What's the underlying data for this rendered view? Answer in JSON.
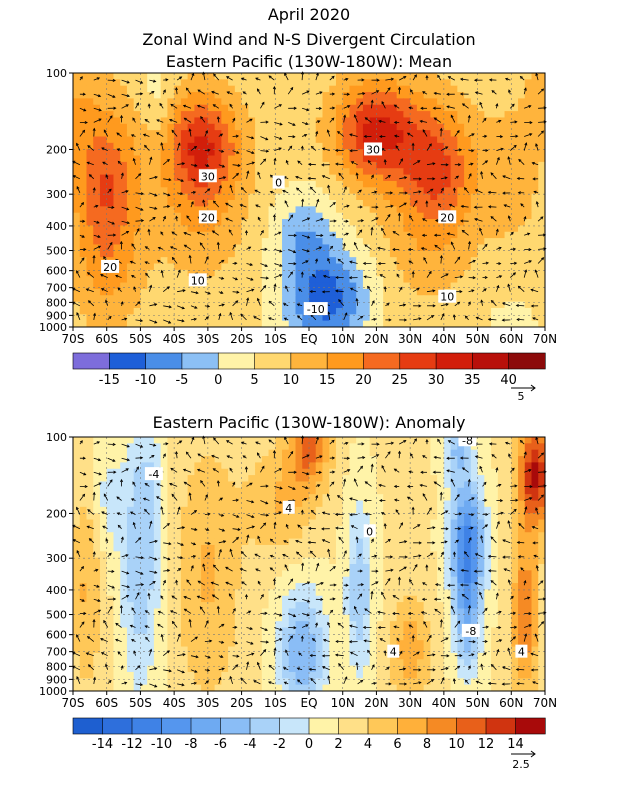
{
  "header": {
    "date": "April 2020",
    "title": "Zonal Wind and N-S Divergent Circulation"
  },
  "chart_data": [
    {
      "type": "heatmap",
      "title": "Eastern Pacific (130W-180W): Mean",
      "x_ticks": [
        "70S",
        "60S",
        "50S",
        "40S",
        "30S",
        "20S",
        "10S",
        "EQ",
        "10N",
        "20N",
        "30N",
        "40N",
        "50N",
        "60N",
        "70N"
      ],
      "y_ticks": [
        "100",
        "200",
        "300",
        "400",
        "500",
        "600",
        "700",
        "800",
        "900",
        "1000"
      ],
      "y_scale": "log",
      "colorbar_labels": [
        "-15",
        "-10",
        "-5",
        "0",
        "5",
        "10",
        "15",
        "20",
        "25",
        "30",
        "35",
        "40"
      ],
      "colorbar_bounds": [
        -20,
        -15,
        -10,
        -5,
        0,
        5,
        10,
        15,
        20,
        25,
        30,
        35,
        40,
        45
      ],
      "colorbar_colors": [
        "#7d6ddb",
        "#1e5fd8",
        "#4a8ee8",
        "#8cc0f5",
        "#fff3a8",
        "#ffd870",
        "#ffb43c",
        "#ff9a1e",
        "#f56a20",
        "#e63c12",
        "#d21e0a",
        "#b8100a",
        "#8c0a0a"
      ],
      "vector_ref": "5",
      "contour_labels": [
        {
          "text": "20",
          "lat": -59,
          "p": 580
        },
        {
          "text": "30",
          "lat": -30,
          "p": 255
        },
        {
          "text": "20",
          "lat": -30,
          "p": 370
        },
        {
          "text": "10",
          "lat": -33,
          "p": 655
        },
        {
          "text": "-10",
          "lat": 2,
          "p": 850
        },
        {
          "text": "0",
          "lat": -9,
          "p": 270
        },
        {
          "text": "30",
          "lat": 19,
          "p": 200
        },
        {
          "text": "20",
          "lat": 41,
          "p": 370
        },
        {
          "text": "10",
          "lat": 41,
          "p": 760
        }
      ],
      "features": [
        {
          "lat": -32,
          "p": 190,
          "amp": 22,
          "wlat": 11,
          "wp": 0.45
        },
        {
          "lat": -32,
          "p": 350,
          "amp": 8,
          "wlat": 13,
          "wp": 0.6
        },
        {
          "lat": -60,
          "p": 280,
          "amp": 18,
          "wlat": 10,
          "wp": 0.7
        },
        {
          "lat": -60,
          "p": 650,
          "amp": 6,
          "wlat": 10,
          "wp": 0.5
        },
        {
          "lat": 20,
          "p": 170,
          "amp": 25,
          "wlat": 12,
          "wp": 0.45
        },
        {
          "lat": 38,
          "p": 230,
          "amp": 18,
          "wlat": 11,
          "wp": 0.55
        },
        {
          "lat": 35,
          "p": 450,
          "amp": 6,
          "wlat": 14,
          "wp": 0.6
        },
        {
          "lat": 5,
          "p": 780,
          "amp": -19,
          "wlat": 13,
          "wp": 0.5
        },
        {
          "lat": -2,
          "p": 420,
          "amp": -9,
          "wlat": 9,
          "wp": 0.4
        },
        {
          "lat": 60,
          "p": 250,
          "amp": 6,
          "wlat": 9,
          "wp": 0.6
        },
        {
          "lat": -45,
          "p": 130,
          "amp": -5,
          "wlat": 5,
          "wp": 0.4
        },
        {
          "lat": -70,
          "p": 120,
          "amp": 6,
          "wlat": 8,
          "wp": 0.6
        },
        {
          "lat": 70,
          "p": 130,
          "amp": 6,
          "wlat": 6,
          "wp": 0.4
        },
        {
          "lat": 60,
          "p": 980,
          "amp": -6,
          "wlat": 7,
          "wp": 0.2
        }
      ],
      "base": 7
    },
    {
      "type": "heatmap",
      "title": "Eastern Pacific (130W-180W): Anomaly",
      "x_ticks": [
        "70S",
        "60S",
        "50S",
        "40S",
        "30S",
        "20S",
        "10S",
        "EQ",
        "10N",
        "20N",
        "30N",
        "40N",
        "50N",
        "60N",
        "70N"
      ],
      "y_ticks": [
        "100",
        "200",
        "300",
        "400",
        "500",
        "600",
        "700",
        "800",
        "900",
        "1000"
      ],
      "y_scale": "log",
      "colorbar_labels": [
        "-14",
        "-12",
        "-10",
        "-8",
        "-6",
        "-4",
        "-2",
        "0",
        "2",
        "4",
        "6",
        "8",
        "10",
        "12",
        "14"
      ],
      "colorbar_bounds": [
        -16,
        -14,
        -12,
        -10,
        -8,
        -6,
        -4,
        -2,
        0,
        2,
        4,
        6,
        8,
        10,
        12,
        14,
        16
      ],
      "colorbar_colors": [
        "#1e5fd0",
        "#2e6fdc",
        "#3f82e6",
        "#5596ee",
        "#6eaaf2",
        "#8abdf6",
        "#a9d2f8",
        "#c8e6fa",
        "#fff3a8",
        "#ffe088",
        "#ffc858",
        "#ffb03a",
        "#f58a24",
        "#e8601a",
        "#d03410",
        "#a80a0a"
      ],
      "vector_ref": "2.5",
      "contour_labels": [
        {
          "text": "-4",
          "lat": -46,
          "p": 140
        },
        {
          "text": "4",
          "lat": -6,
          "p": 190
        },
        {
          "text": "0",
          "lat": 18,
          "p": 235
        },
        {
          "text": "-8",
          "lat": 47,
          "p": 103
        },
        {
          "text": "-8",
          "lat": 48,
          "p": 580
        },
        {
          "text": "4",
          "lat": 25,
          "p": 700
        },
        {
          "text": "4",
          "lat": 63,
          "p": 700
        }
      ],
      "features": [
        {
          "lat": -50,
          "p": 300,
          "amp": -6,
          "wlat": 6,
          "wp": 1.2
        },
        {
          "lat": -46,
          "p": 150,
          "amp": -2,
          "wlat": 4,
          "wp": 0.4
        },
        {
          "lat": -60,
          "p": 180,
          "amp": -3,
          "wlat": 4,
          "wp": 0.5
        },
        {
          "lat": -30,
          "p": 350,
          "amp": 4,
          "wlat": 10,
          "wp": 1.2
        },
        {
          "lat": 0,
          "p": 110,
          "amp": 8,
          "wlat": 6,
          "wp": 0.35
        },
        {
          "lat": -8,
          "p": 180,
          "amp": 4,
          "wlat": 10,
          "wp": 0.5
        },
        {
          "lat": -2,
          "p": 700,
          "amp": -8,
          "wlat": 7,
          "wp": 0.6
        },
        {
          "lat": 15,
          "p": 400,
          "amp": -6,
          "wlat": 4,
          "wp": 0.8
        },
        {
          "lat": 47,
          "p": 260,
          "amp": -13,
          "wlat": 5,
          "wp": 0.55
        },
        {
          "lat": 47,
          "p": 550,
          "amp": -7,
          "wlat": 4,
          "wp": 0.5
        },
        {
          "lat": 44,
          "p": 110,
          "amp": -6,
          "wlat": 4,
          "wp": 0.3
        },
        {
          "lat": 67,
          "p": 140,
          "amp": 12,
          "wlat": 5,
          "wp": 0.5
        },
        {
          "lat": 64,
          "p": 500,
          "amp": 8,
          "wlat": 4,
          "wp": 0.7
        },
        {
          "lat": 30,
          "p": 700,
          "amp": 5,
          "wlat": 6,
          "wp": 0.5
        },
        {
          "lat": -66,
          "p": 400,
          "amp": 4,
          "wlat": 5,
          "wp": 0.9
        }
      ],
      "base": 2.2
    }
  ]
}
